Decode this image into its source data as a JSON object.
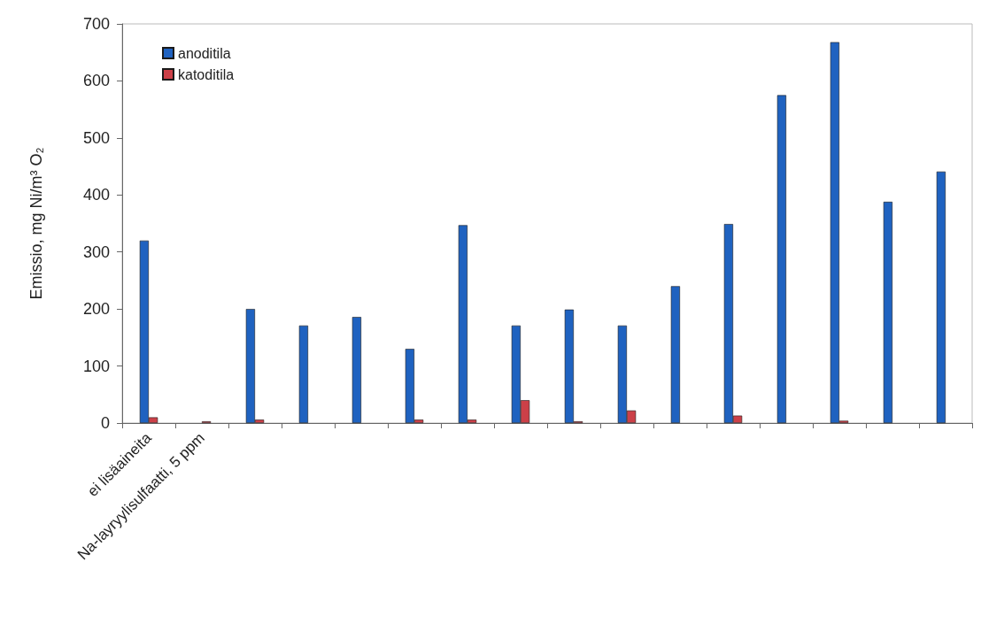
{
  "chart_data": {
    "type": "bar",
    "ylabel": "Emissio, mg Ni/m³ O₂",
    "categories": [
      "ei lisäaineita",
      "Na-layryylisulfaatti, 5 ppm",
      null,
      null,
      null,
      null,
      null,
      null,
      null,
      null,
      null,
      null,
      null,
      null,
      null,
      null
    ],
    "series": [
      {
        "name": "anoditila",
        "color": "#1f62c0",
        "values": [
          320,
          null,
          200,
          171,
          186,
          130,
          347,
          171,
          199,
          171,
          240,
          349,
          575,
          668,
          388,
          441
        ]
      },
      {
        "name": "katoditila",
        "color": "#cc4048",
        "values": [
          10,
          3,
          6,
          null,
          null,
          6,
          6,
          40,
          3,
          22,
          null,
          13,
          null,
          4,
          null,
          null
        ]
      }
    ],
    "ylim": [
      0,
      700
    ],
    "yticks": [
      0,
      100,
      200,
      300,
      400,
      500,
      600,
      700
    ],
    "grid": false,
    "legend": "top left"
  }
}
